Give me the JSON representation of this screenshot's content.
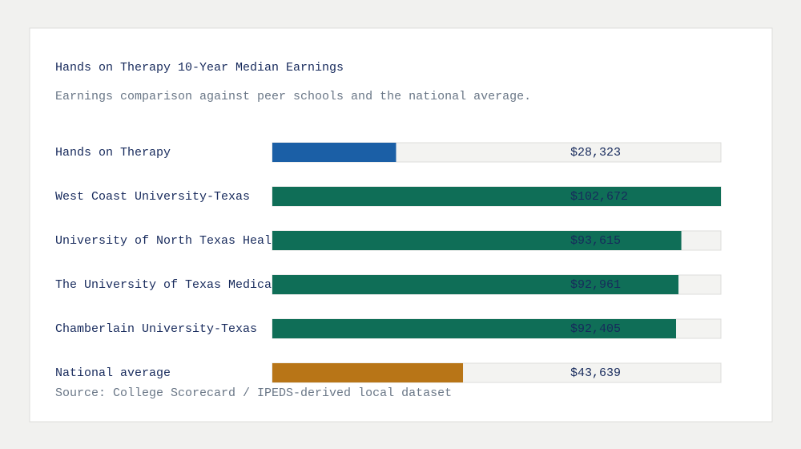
{
  "chart_data": {
    "type": "bar",
    "orientation": "horizontal",
    "title": "Hands on Therapy 10-Year Median Earnings",
    "subtitle": "Earnings comparison against peer schools and the national average.",
    "categories": [
      "Hands on Therapy",
      "West Coast University-Texas",
      "University of North Texas Heal",
      "The University of Texas Medica",
      "Chamberlain University-Texas",
      "National average"
    ],
    "values": [
      28323,
      102672,
      93615,
      92961,
      92405,
      43639
    ],
    "value_labels": [
      "$28,323",
      "$102,672",
      "$93,615",
      "$92,961",
      "$92,405",
      "$43,639"
    ],
    "colors": [
      "#1b5fa6",
      "#0f6e57",
      "#0f6e57",
      "#0f6e57",
      "#0f6e57",
      "#b87517"
    ],
    "xlim": [
      0,
      102672
    ],
    "source": "Source: College Scorecard / IPEDS-derived local dataset"
  }
}
